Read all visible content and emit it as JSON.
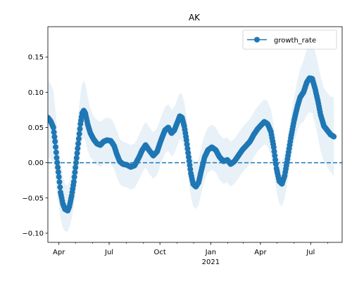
{
  "chart_data": {
    "type": "line",
    "title": "AK",
    "xlabel": "",
    "ylabel": "",
    "x_range": [
      "2020-03-12",
      "2021-08-27"
    ],
    "ylim": [
      -0.113,
      0.193
    ],
    "grid": false,
    "legend_position": "upper right",
    "x_ticks": [
      {
        "date": "2020-04-01",
        "label": "Apr",
        "sublabel": ""
      },
      {
        "date": "2020-07-01",
        "label": "Jul",
        "sublabel": ""
      },
      {
        "date": "2020-10-01",
        "label": "Oct",
        "sublabel": ""
      },
      {
        "date": "2021-01-01",
        "label": "Jan",
        "sublabel": "2021"
      },
      {
        "date": "2021-04-01",
        "label": "Apr",
        "sublabel": ""
      },
      {
        "date": "2021-07-01",
        "label": "Jul",
        "sublabel": ""
      }
    ],
    "y_ticks": [
      {
        "value": 0.15,
        "label": "0.15"
      },
      {
        "value": 0.1,
        "label": "0.10"
      },
      {
        "value": 0.05,
        "label": "0.05"
      },
      {
        "value": 0.0,
        "label": "0.00"
      },
      {
        "value": -0.05,
        "label": "−0.05"
      },
      {
        "value": -0.1,
        "label": "−0.10"
      }
    ],
    "reference_line": {
      "y": 0.0,
      "style": "dashed"
    },
    "series": [
      {
        "name": "growth_rate",
        "color": "#1f77b4",
        "band_color": "#1f77b4",
        "points": [
          {
            "x": "2020-03-12",
            "y": 0.064,
            "lo": 0.008,
            "hi": 0.118
          },
          {
            "x": "2020-03-17",
            "y": 0.059,
            "lo": 0.006,
            "hi": 0.112
          },
          {
            "x": "2020-03-22",
            "y": 0.05,
            "lo": -0.002,
            "hi": 0.103
          },
          {
            "x": "2020-03-25",
            "y": 0.03,
            "lo": -0.019,
            "hi": 0.08
          },
          {
            "x": "2020-03-28",
            "y": 0.007,
            "lo": -0.04,
            "hi": 0.055
          },
          {
            "x": "2020-04-01",
            "y": -0.02,
            "lo": -0.062,
            "hi": 0.027
          },
          {
            "x": "2020-04-04",
            "y": -0.042,
            "lo": -0.08,
            "hi": 0.002
          },
          {
            "x": "2020-04-08",
            "y": -0.058,
            "lo": -0.093,
            "hi": -0.018
          },
          {
            "x": "2020-04-12",
            "y": -0.066,
            "lo": -0.097,
            "hi": -0.03
          },
          {
            "x": "2020-04-17",
            "y": -0.068,
            "lo": -0.098,
            "hi": -0.033
          },
          {
            "x": "2020-04-20",
            "y": -0.062,
            "lo": -0.092,
            "hi": -0.026
          },
          {
            "x": "2020-04-24",
            "y": -0.047,
            "lo": -0.08,
            "hi": -0.011
          },
          {
            "x": "2020-04-28",
            "y": -0.027,
            "lo": -0.062,
            "hi": 0.011
          },
          {
            "x": "2020-05-02",
            "y": 0.0,
            "lo": -0.037,
            "hi": 0.04
          },
          {
            "x": "2020-05-06",
            "y": 0.027,
            "lo": -0.012,
            "hi": 0.068
          },
          {
            "x": "2020-05-10",
            "y": 0.055,
            "lo": 0.016,
            "hi": 0.098
          },
          {
            "x": "2020-05-13",
            "y": 0.07,
            "lo": 0.03,
            "hi": 0.112
          },
          {
            "x": "2020-05-16",
            "y": 0.074,
            "lo": 0.035,
            "hi": 0.116
          },
          {
            "x": "2020-05-19",
            "y": 0.07,
            "lo": 0.031,
            "hi": 0.111
          },
          {
            "x": "2020-05-23",
            "y": 0.055,
            "lo": 0.017,
            "hi": 0.094
          },
          {
            "x": "2020-05-28",
            "y": 0.042,
            "lo": 0.008,
            "hi": 0.077
          },
          {
            "x": "2020-06-03",
            "y": 0.033,
            "lo": 0.002,
            "hi": 0.066
          },
          {
            "x": "2020-06-09",
            "y": 0.027,
            "lo": -0.004,
            "hi": 0.06
          },
          {
            "x": "2020-06-15",
            "y": 0.025,
            "lo": -0.006,
            "hi": 0.058
          },
          {
            "x": "2020-06-21",
            "y": 0.03,
            "lo": -0.002,
            "hi": 0.062
          },
          {
            "x": "2020-06-27",
            "y": 0.032,
            "lo": 0.0,
            "hi": 0.064
          },
          {
            "x": "2020-07-04",
            "y": 0.031,
            "lo": -0.002,
            "hi": 0.063
          },
          {
            "x": "2020-07-10",
            "y": 0.024,
            "lo": -0.009,
            "hi": 0.056
          },
          {
            "x": "2020-07-15",
            "y": 0.012,
            "lo": -0.021,
            "hi": 0.045
          },
          {
            "x": "2020-07-20",
            "y": 0.002,
            "lo": -0.03,
            "hi": 0.034
          },
          {
            "x": "2020-07-26",
            "y": -0.002,
            "lo": -0.034,
            "hi": 0.03
          },
          {
            "x": "2020-08-02",
            "y": -0.003,
            "lo": -0.035,
            "hi": 0.028
          },
          {
            "x": "2020-08-09",
            "y": -0.006,
            "lo": -0.038,
            "hi": 0.025
          },
          {
            "x": "2020-08-16",
            "y": -0.004,
            "lo": -0.036,
            "hi": 0.027
          },
          {
            "x": "2020-08-23",
            "y": 0.006,
            "lo": -0.026,
            "hi": 0.037
          },
          {
            "x": "2020-08-30",
            "y": 0.018,
            "lo": -0.014,
            "hi": 0.05
          },
          {
            "x": "2020-09-05",
            "y": 0.025,
            "lo": -0.007,
            "hi": 0.058
          },
          {
            "x": "2020-09-12",
            "y": 0.017,
            "lo": -0.016,
            "hi": 0.05
          },
          {
            "x": "2020-09-19",
            "y": 0.01,
            "lo": -0.023,
            "hi": 0.043
          },
          {
            "x": "2020-09-26",
            "y": 0.016,
            "lo": -0.017,
            "hi": 0.049
          },
          {
            "x": "2020-10-03",
            "y": 0.032,
            "lo": -0.001,
            "hi": 0.065
          },
          {
            "x": "2020-10-10",
            "y": 0.046,
            "lo": 0.013,
            "hi": 0.079
          },
          {
            "x": "2020-10-16",
            "y": 0.05,
            "lo": 0.017,
            "hi": 0.083
          },
          {
            "x": "2020-10-22",
            "y": 0.042,
            "lo": 0.009,
            "hi": 0.075
          },
          {
            "x": "2020-10-27",
            "y": 0.046,
            "lo": 0.013,
            "hi": 0.079
          },
          {
            "x": "2020-11-02",
            "y": 0.058,
            "lo": 0.025,
            "hi": 0.091
          },
          {
            "x": "2020-11-06",
            "y": 0.066,
            "lo": 0.033,
            "hi": 0.099
          },
          {
            "x": "2020-11-10",
            "y": 0.064,
            "lo": 0.031,
            "hi": 0.097
          },
          {
            "x": "2020-11-14",
            "y": 0.052,
            "lo": 0.019,
            "hi": 0.086
          },
          {
            "x": "2020-11-18",
            "y": 0.032,
            "lo": -0.001,
            "hi": 0.066
          },
          {
            "x": "2020-11-22",
            "y": 0.008,
            "lo": -0.025,
            "hi": 0.042
          },
          {
            "x": "2020-11-26",
            "y": -0.015,
            "lo": -0.048,
            "hi": 0.019
          },
          {
            "x": "2020-11-30",
            "y": -0.03,
            "lo": -0.062,
            "hi": 0.004
          },
          {
            "x": "2020-12-05",
            "y": -0.034,
            "lo": -0.066,
            "hi": 0.0
          },
          {
            "x": "2020-12-10",
            "y": -0.028,
            "lo": -0.06,
            "hi": 0.005
          },
          {
            "x": "2020-12-15",
            "y": -0.011,
            "lo": -0.043,
            "hi": 0.022
          },
          {
            "x": "2020-12-21",
            "y": 0.008,
            "lo": -0.024,
            "hi": 0.04
          },
          {
            "x": "2020-12-27",
            "y": 0.018,
            "lo": -0.014,
            "hi": 0.05
          },
          {
            "x": "2021-01-03",
            "y": 0.022,
            "lo": -0.01,
            "hi": 0.054
          },
          {
            "x": "2021-01-10",
            "y": 0.018,
            "lo": -0.014,
            "hi": 0.05
          },
          {
            "x": "2021-01-17",
            "y": 0.008,
            "lo": -0.024,
            "hi": 0.04
          },
          {
            "x": "2021-01-24",
            "y": 0.002,
            "lo": -0.03,
            "hi": 0.034
          },
          {
            "x": "2021-01-31",
            "y": 0.004,
            "lo": -0.028,
            "hi": 0.036
          },
          {
            "x": "2021-02-06",
            "y": -0.002,
            "lo": -0.034,
            "hi": 0.03
          },
          {
            "x": "2021-02-13",
            "y": 0.002,
            "lo": -0.03,
            "hi": 0.034
          },
          {
            "x": "2021-02-20",
            "y": 0.01,
            "lo": -0.022,
            "hi": 0.042
          },
          {
            "x": "2021-02-27",
            "y": 0.018,
            "lo": -0.014,
            "hi": 0.05
          },
          {
            "x": "2021-03-06",
            "y": 0.024,
            "lo": -0.008,
            "hi": 0.056
          },
          {
            "x": "2021-03-13",
            "y": 0.03,
            "lo": -0.002,
            "hi": 0.062
          },
          {
            "x": "2021-03-20",
            "y": 0.04,
            "lo": 0.008,
            "hi": 0.072
          },
          {
            "x": "2021-03-27",
            "y": 0.048,
            "lo": 0.016,
            "hi": 0.08
          },
          {
            "x": "2021-04-03",
            "y": 0.054,
            "lo": 0.022,
            "hi": 0.086
          },
          {
            "x": "2021-04-08",
            "y": 0.058,
            "lo": 0.026,
            "hi": 0.09
          },
          {
            "x": "2021-04-14",
            "y": 0.055,
            "lo": 0.023,
            "hi": 0.087
          },
          {
            "x": "2021-04-20",
            "y": 0.044,
            "lo": 0.012,
            "hi": 0.076
          },
          {
            "x": "2021-04-25",
            "y": 0.022,
            "lo": -0.01,
            "hi": 0.054
          },
          {
            "x": "2021-04-30",
            "y": -0.008,
            "lo": -0.04,
            "hi": 0.024
          },
          {
            "x": "2021-05-05",
            "y": -0.026,
            "lo": -0.058,
            "hi": 0.006
          },
          {
            "x": "2021-05-10",
            "y": -0.03,
            "lo": -0.062,
            "hi": 0.002
          },
          {
            "x": "2021-05-15",
            "y": -0.018,
            "lo": -0.05,
            "hi": 0.014
          },
          {
            "x": "2021-05-20",
            "y": 0.005,
            "lo": -0.027,
            "hi": 0.037
          },
          {
            "x": "2021-05-26",
            "y": 0.035,
            "lo": 0.003,
            "hi": 0.067
          },
          {
            "x": "2021-06-01",
            "y": 0.06,
            "lo": 0.028,
            "hi": 0.092
          },
          {
            "x": "2021-06-07",
            "y": 0.08,
            "lo": 0.045,
            "hi": 0.117
          },
          {
            "x": "2021-06-12",
            "y": 0.093,
            "lo": 0.055,
            "hi": 0.133
          },
          {
            "x": "2021-06-18",
            "y": 0.1,
            "lo": 0.058,
            "hi": 0.145
          },
          {
            "x": "2021-06-24",
            "y": 0.114,
            "lo": 0.068,
            "hi": 0.162
          },
          {
            "x": "2021-06-29",
            "y": 0.12,
            "lo": 0.072,
            "hi": 0.17
          },
          {
            "x": "2021-07-04",
            "y": 0.119,
            "lo": 0.07,
            "hi": 0.17
          },
          {
            "x": "2021-07-09",
            "y": 0.105,
            "lo": 0.055,
            "hi": 0.158
          },
          {
            "x": "2021-07-14",
            "y": 0.088,
            "lo": 0.037,
            "hi": 0.142
          },
          {
            "x": "2021-07-19",
            "y": 0.068,
            "lo": 0.017,
            "hi": 0.122
          },
          {
            "x": "2021-07-25",
            "y": 0.052,
            "lo": 0.002,
            "hi": 0.106
          },
          {
            "x": "2021-07-31",
            "y": 0.046,
            "lo": -0.006,
            "hi": 0.099
          },
          {
            "x": "2021-08-06",
            "y": 0.04,
            "lo": -0.013,
            "hi": 0.094
          },
          {
            "x": "2021-08-12",
            "y": 0.037,
            "lo": -0.019,
            "hi": 0.093
          }
        ]
      }
    ]
  }
}
